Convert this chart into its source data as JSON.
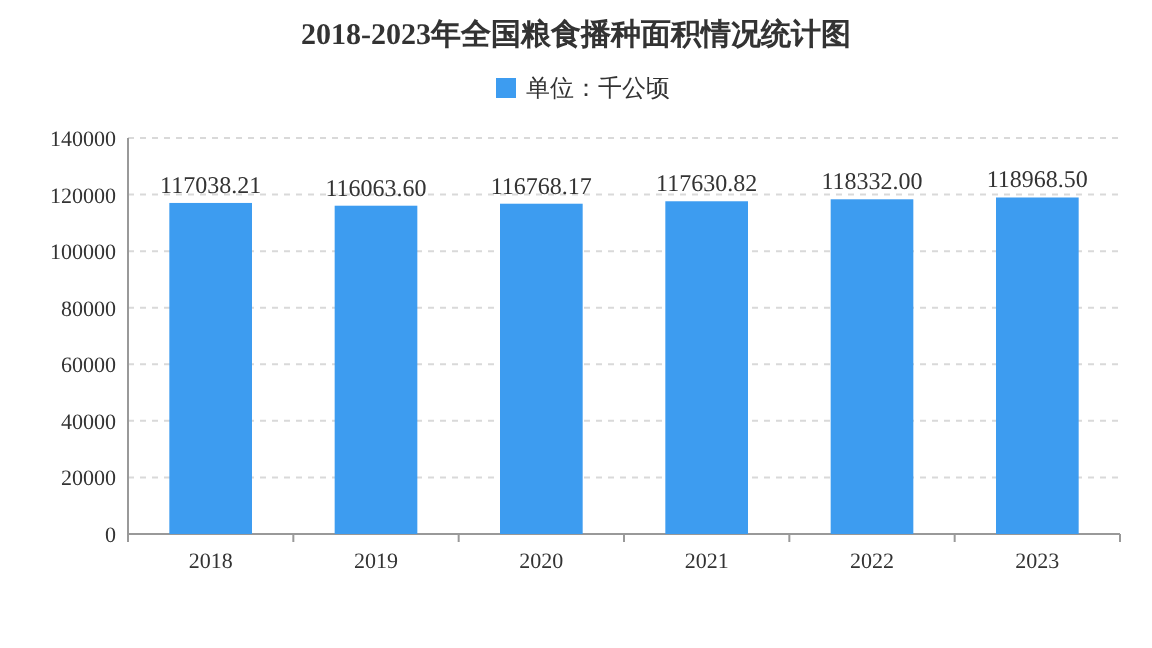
{
  "chart_data": {
    "type": "bar",
    "title": "2018-2023年全国粮食播种面积情况统计图",
    "categories": [
      "2018",
      "2019",
      "2020",
      "2021",
      "2022",
      "2023"
    ],
    "series": [
      {
        "name": "单位：千公顷",
        "color": "#3d9cf0",
        "values": [
          117038.21,
          116063.6,
          116768.17,
          117630.82,
          118332.0,
          118968.5
        ],
        "value_labels": [
          "117038.21",
          "116063.60",
          "116768.17",
          "117630.82",
          "118332.00",
          "118968.50"
        ]
      }
    ],
    "ylim": [
      0,
      140000
    ],
    "yticks": [
      0,
      20000,
      40000,
      60000,
      80000,
      100000,
      120000,
      140000
    ],
    "grid": "y",
    "legend": "top"
  }
}
